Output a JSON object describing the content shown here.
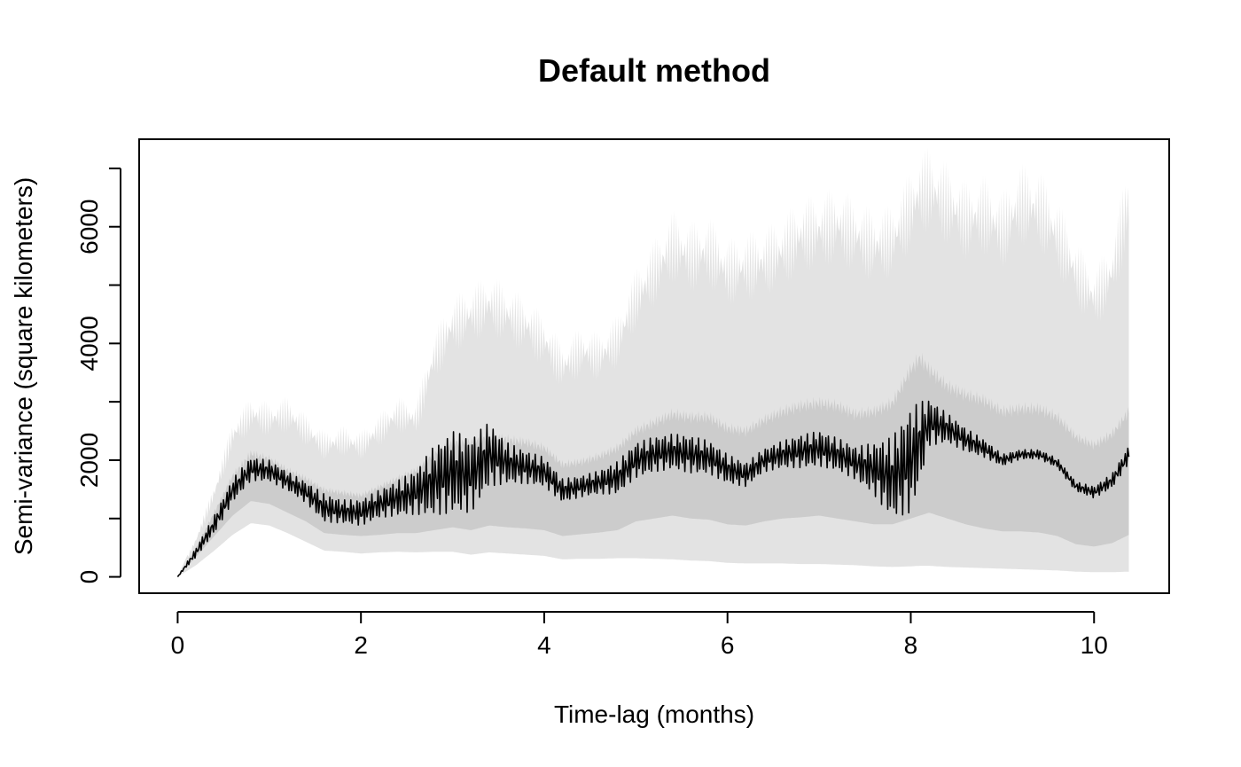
{
  "chart_data": {
    "type": "line",
    "title": "Default method",
    "xlabel": "Time-lag (months)",
    "ylabel": "Semi-variance (square kilometers)",
    "xlim": [
      -0.42,
      10.82
    ],
    "ylim": [
      -280,
      7500
    ],
    "xticks": [
      0,
      2,
      4,
      6,
      8,
      10
    ],
    "xtick_labels": [
      "0",
      "2",
      "4",
      "6",
      "8",
      "10"
    ],
    "yticks": [
      0,
      1000,
      2000,
      3000,
      4000,
      5000,
      6000,
      7000
    ],
    "ytick_labels": [
      "0",
      "",
      "2000",
      "",
      "4000",
      "",
      "6000",
      ""
    ],
    "grid": false,
    "legend": "none",
    "colors": {
      "line": "#000000",
      "band_inner": "#cccccc",
      "band_outer": "#e3e3e3"
    },
    "series": [
      {
        "role": "semi-variance",
        "x": [
          0,
          0.2,
          0.4,
          0.6,
          0.8,
          1.0,
          1.2,
          1.4,
          1.6,
          1.8,
          2.0,
          2.2,
          2.4,
          2.6,
          2.8,
          3.0,
          3.2,
          3.4,
          3.6,
          3.8,
          4.0,
          4.2,
          4.4,
          4.6,
          4.8,
          5.0,
          5.2,
          5.4,
          5.6,
          5.8,
          6.0,
          6.2,
          6.4,
          6.6,
          6.8,
          7.0,
          7.2,
          7.4,
          7.6,
          7.8,
          8.0,
          8.1,
          8.2,
          8.4,
          8.6,
          8.8,
          9.0,
          9.2,
          9.4,
          9.6,
          9.8,
          10.0,
          10.2,
          10.38
        ],
        "y": [
          0,
          420,
          900,
          1480,
          1850,
          1820,
          1640,
          1450,
          1180,
          1120,
          1100,
          1250,
          1350,
          1450,
          1650,
          1800,
          1750,
          2100,
          1950,
          1880,
          1800,
          1480,
          1550,
          1620,
          1700,
          2000,
          2100,
          2150,
          2100,
          2050,
          1850,
          1750,
          2000,
          2100,
          2150,
          2200,
          2100,
          1950,
          1850,
          1700,
          2000,
          2300,
          2650,
          2550,
          2350,
          2200,
          2000,
          2100,
          2100,
          1950,
          1550,
          1450,
          1650,
          2100
        ],
        "amplitude": [
          0,
          80,
          150,
          200,
          200,
          180,
          160,
          180,
          240,
          200,
          220,
          240,
          300,
          380,
          600,
          700,
          650,
          550,
          350,
          280,
          250,
          200,
          180,
          200,
          280,
          300,
          300,
          300,
          320,
          280,
          250,
          200,
          200,
          230,
          280,
          300,
          280,
          280,
          450,
          700,
          900,
          700,
          400,
          250,
          200,
          150,
          100,
          80,
          80,
          80,
          80,
          100,
          120,
          150
        ]
      }
    ],
    "bands": {
      "x": [
        0,
        0.2,
        0.4,
        0.6,
        0.8,
        1.0,
        1.2,
        1.4,
        1.6,
        1.8,
        2.0,
        2.2,
        2.4,
        2.6,
        2.8,
        3.0,
        3.2,
        3.4,
        3.6,
        3.8,
        4.0,
        4.2,
        4.4,
        4.6,
        4.8,
        5.0,
        5.2,
        5.4,
        5.6,
        5.8,
        6.0,
        6.2,
        6.4,
        6.6,
        6.8,
        7.0,
        7.2,
        7.4,
        7.6,
        7.8,
        8.0,
        8.1,
        8.2,
        8.4,
        8.6,
        8.8,
        9.0,
        9.2,
        9.4,
        9.6,
        9.8,
        10.0,
        10.2,
        10.38
      ],
      "outer_upper": [
        0,
        700,
        1600,
        2700,
        3100,
        3000,
        3100,
        2800,
        2500,
        2600,
        2500,
        2800,
        3100,
        3000,
        4200,
        4800,
        5000,
        5200,
        5000,
        4800,
        4500,
        4000,
        4300,
        4200,
        4500,
        5300,
        5800,
        6300,
        6100,
        6200,
        5800,
        5900,
        6000,
        6200,
        6500,
        6600,
        6700,
        6500,
        6300,
        6400,
        7000,
        7300,
        7400,
        7100,
        6800,
        6900,
        6600,
        7100,
        7000,
        6500,
        5800,
        5300,
        5800,
        7200
      ],
      "inner_upper": [
        0,
        520,
        1150,
        1800,
        2200,
        2100,
        1900,
        1750,
        1550,
        1500,
        1450,
        1600,
        1750,
        1900,
        2200,
        2400,
        2400,
        2500,
        2450,
        2400,
        2300,
        2000,
        2050,
        2150,
        2300,
        2600,
        2750,
        2900,
        2850,
        2850,
        2650,
        2600,
        2800,
        2950,
        3050,
        3100,
        3050,
        2900,
        2950,
        3100,
        3700,
        3900,
        3700,
        3400,
        3250,
        3150,
        2950,
        3000,
        3000,
        2850,
        2500,
        2350,
        2550,
        2950
      ],
      "inner_lower": [
        0,
        340,
        700,
        1050,
        1300,
        1250,
        1100,
        950,
        750,
        720,
        700,
        720,
        750,
        750,
        800,
        850,
        800,
        880,
        850,
        830,
        800,
        700,
        730,
        760,
        800,
        950,
        1000,
        1050,
        1000,
        980,
        900,
        880,
        950,
        1000,
        1020,
        1050,
        1000,
        950,
        900,
        900,
        1000,
        1050,
        1100,
        1000,
        900,
        830,
        780,
        780,
        760,
        700,
        560,
        520,
        580,
        720
      ],
      "outer_lower": [
        0,
        200,
        450,
        720,
        920,
        880,
        750,
        600,
        450,
        430,
        400,
        420,
        430,
        420,
        430,
        430,
        380,
        420,
        400,
        380,
        360,
        300,
        310,
        310,
        320,
        320,
        310,
        300,
        280,
        270,
        240,
        230,
        230,
        230,
        220,
        220,
        210,
        200,
        180,
        170,
        180,
        190,
        190,
        170,
        160,
        150,
        140,
        130,
        120,
        110,
        90,
        80,
        80,
        90
      ]
    }
  }
}
